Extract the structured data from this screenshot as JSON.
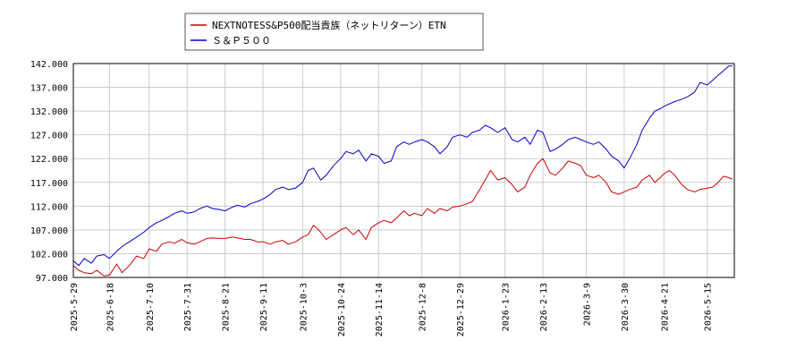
{
  "chart_data": {
    "type": "line",
    "title": "",
    "xlabel": "",
    "ylabel": "",
    "ylim": [
      97.0,
      142.0
    ],
    "y_ticks": [
      "97.000",
      "102.000",
      "107.000",
      "112.000",
      "117.000",
      "122.000",
      "127.000",
      "132.000",
      "137.000",
      "142.000"
    ],
    "x_ticks": [
      "2025-5-29",
      "2025-6-18",
      "2025-7-10",
      "2025-7-31",
      "2025-8-21",
      "2025-9-11",
      "2025-10-3",
      "2025-10-24",
      "2025-11-14",
      "2025-12-8",
      "2025-12-29",
      "2026-1-23",
      "2026-2-13",
      "2026-3-9",
      "2026-3-30",
      "2026-4-21",
      "2026-5-15"
    ],
    "xlim": [
      "2025-5-29",
      "2026-5-30"
    ],
    "grid": true,
    "legend": "top-center",
    "series": [
      {
        "name": "NEXTNOTESS&P500配当貴族（ネットリターン）ETN",
        "color": "#cc0000",
        "points": [
          [
            "2025-5-29",
            99.5
          ],
          [
            "2025-6-1",
            98.5
          ],
          [
            "2025-6-4",
            98.0
          ],
          [
            "2025-6-8",
            97.8
          ],
          [
            "2025-6-11",
            98.5
          ],
          [
            "2025-6-15",
            97.3
          ],
          [
            "2025-6-18",
            97.5
          ],
          [
            "2025-6-22",
            99.8
          ],
          [
            "2025-6-25",
            98.0
          ],
          [
            "2025-6-29",
            99.5
          ],
          [
            "2025-7-3",
            101.5
          ],
          [
            "2025-7-7",
            101.0
          ],
          [
            "2025-7-10",
            103.0
          ],
          [
            "2025-7-14",
            102.5
          ],
          [
            "2025-7-17",
            104.0
          ],
          [
            "2025-7-21",
            104.5
          ],
          [
            "2025-7-24",
            104.2
          ],
          [
            "2025-7-28",
            105.0
          ],
          [
            "2025-7-31",
            104.3
          ],
          [
            "2025-8-4",
            104.0
          ],
          [
            "2025-8-7",
            104.5
          ],
          [
            "2025-8-11",
            105.2
          ],
          [
            "2025-8-14",
            105.3
          ],
          [
            "2025-8-18",
            105.2
          ],
          [
            "2025-8-21",
            105.2
          ],
          [
            "2025-8-25",
            105.5
          ],
          [
            "2025-8-28",
            105.3
          ],
          [
            "2025-9-1",
            105.0
          ],
          [
            "2025-9-4",
            105.0
          ],
          [
            "2025-9-8",
            104.5
          ],
          [
            "2025-9-11",
            104.5
          ],
          [
            "2025-9-15",
            104.0
          ],
          [
            "2025-9-18",
            104.5
          ],
          [
            "2025-9-22",
            104.8
          ],
          [
            "2025-9-25",
            104.0
          ],
          [
            "2025-9-29",
            104.5
          ],
          [
            "2025-10-3",
            105.5
          ],
          [
            "2025-10-6",
            106.0
          ],
          [
            "2025-10-9",
            108.0
          ],
          [
            "2025-10-13",
            106.5
          ],
          [
            "2025-10-16",
            105.0
          ],
          [
            "2025-10-20",
            106.0
          ],
          [
            "2025-10-24",
            107.0
          ],
          [
            "2025-10-27",
            107.5
          ],
          [
            "2025-10-31",
            106.0
          ],
          [
            "2025-11-3",
            107.0
          ],
          [
            "2025-11-7",
            105.0
          ],
          [
            "2025-11-10",
            107.5
          ],
          [
            "2025-11-14",
            108.5
          ],
          [
            "2025-11-17",
            109.0
          ],
          [
            "2025-11-21",
            108.5
          ],
          [
            "2025-11-24",
            109.5
          ],
          [
            "2025-11-28",
            111.0
          ],
          [
            "2025-12-1",
            110.0
          ],
          [
            "2025-12-4",
            110.5
          ],
          [
            "2025-12-8",
            110.0
          ],
          [
            "2025-12-11",
            111.5
          ],
          [
            "2025-12-15",
            110.5
          ],
          [
            "2025-12-18",
            111.5
          ],
          [
            "2025-12-22",
            111.0
          ],
          [
            "2025-12-25",
            111.8
          ],
          [
            "2025-12-29",
            112.0
          ],
          [
            "2026-1-2",
            112.5
          ],
          [
            "2026-1-5",
            113.0
          ],
          [
            "2026-1-9",
            115.5
          ],
          [
            "2026-1-12",
            117.5
          ],
          [
            "2026-1-15",
            119.5
          ],
          [
            "2026-1-19",
            117.5
          ],
          [
            "2026-1-23",
            118.0
          ],
          [
            "2026-1-27",
            116.5
          ],
          [
            "2026-1-30",
            115.0
          ],
          [
            "2026-2-3",
            116.0
          ],
          [
            "2026-2-6",
            118.5
          ],
          [
            "2026-2-10",
            121.0
          ],
          [
            "2026-2-13",
            122.0
          ],
          [
            "2026-2-17",
            119.0
          ],
          [
            "2026-2-20",
            118.5
          ],
          [
            "2026-2-24",
            120.0
          ],
          [
            "2026-2-27",
            121.5
          ],
          [
            "2026-3-3",
            121.0
          ],
          [
            "2026-3-6",
            120.5
          ],
          [
            "2026-3-9",
            118.5
          ],
          [
            "2026-3-13",
            118.0
          ],
          [
            "2026-3-16",
            118.5
          ],
          [
            "2026-3-20",
            117.0
          ],
          [
            "2026-3-23",
            115.0
          ],
          [
            "2026-3-27",
            114.5
          ],
          [
            "2026-3-30",
            115.0
          ],
          [
            "2026-4-2",
            115.5
          ],
          [
            "2026-4-6",
            116.0
          ],
          [
            "2026-4-9",
            117.5
          ],
          [
            "2026-4-13",
            118.5
          ],
          [
            "2026-4-16",
            117.0
          ],
          [
            "2026-4-19",
            118.0
          ],
          [
            "2026-4-21",
            118.8
          ],
          [
            "2026-4-24",
            119.5
          ],
          [
            "2026-4-27",
            118.5
          ],
          [
            "2026-5-1",
            116.5
          ],
          [
            "2026-5-4",
            115.5
          ],
          [
            "2026-5-8",
            115.0
          ],
          [
            "2026-5-11",
            115.5
          ],
          [
            "2026-5-15",
            115.8
          ],
          [
            "2026-5-18",
            116.0
          ],
          [
            "2026-5-21",
            117.0
          ],
          [
            "2026-5-24",
            118.3
          ],
          [
            "2026-5-27",
            118.0
          ],
          [
            "2026-5-29",
            117.7
          ]
        ]
      },
      {
        "name": "Ｓ＆Ｐ５００",
        "color": "#0000cc",
        "points": [
          [
            "2025-5-29",
            100.5
          ],
          [
            "2025-6-1",
            99.5
          ],
          [
            "2025-6-4",
            101.0
          ],
          [
            "2025-6-8",
            100.0
          ],
          [
            "2025-6-11",
            101.5
          ],
          [
            "2025-6-15",
            101.8
          ],
          [
            "2025-6-18",
            101.0
          ],
          [
            "2025-6-22",
            102.5
          ],
          [
            "2025-6-25",
            103.5
          ],
          [
            "2025-6-29",
            104.5
          ],
          [
            "2025-7-3",
            105.5
          ],
          [
            "2025-7-7",
            106.5
          ],
          [
            "2025-7-10",
            107.5
          ],
          [
            "2025-7-14",
            108.5
          ],
          [
            "2025-7-17",
            109.0
          ],
          [
            "2025-7-21",
            109.8
          ],
          [
            "2025-7-24",
            110.5
          ],
          [
            "2025-7-28",
            111.0
          ],
          [
            "2025-7-31",
            110.5
          ],
          [
            "2025-8-4",
            110.8
          ],
          [
            "2025-8-7",
            111.5
          ],
          [
            "2025-8-11",
            112.0
          ],
          [
            "2025-8-14",
            111.5
          ],
          [
            "2025-8-18",
            111.3
          ],
          [
            "2025-8-21",
            111.0
          ],
          [
            "2025-8-25",
            111.8
          ],
          [
            "2025-8-28",
            112.2
          ],
          [
            "2025-9-1",
            111.8
          ],
          [
            "2025-9-4",
            112.5
          ],
          [
            "2025-9-8",
            113.0
          ],
          [
            "2025-9-11",
            113.5
          ],
          [
            "2025-9-15",
            114.5
          ],
          [
            "2025-9-18",
            115.5
          ],
          [
            "2025-9-22",
            116.0
          ],
          [
            "2025-9-25",
            115.5
          ],
          [
            "2025-9-29",
            115.8
          ],
          [
            "2025-10-3",
            117.0
          ],
          [
            "2025-10-6",
            119.5
          ],
          [
            "2025-10-9",
            120.0
          ],
          [
            "2025-10-13",
            117.5
          ],
          [
            "2025-10-16",
            118.5
          ],
          [
            "2025-10-20",
            120.5
          ],
          [
            "2025-10-24",
            122.0
          ],
          [
            "2025-10-27",
            123.5
          ],
          [
            "2025-10-31",
            123.0
          ],
          [
            "2025-11-3",
            123.8
          ],
          [
            "2025-11-7",
            121.5
          ],
          [
            "2025-11-10",
            123.0
          ],
          [
            "2025-11-14",
            122.5
          ],
          [
            "2025-11-17",
            121.0
          ],
          [
            "2025-11-21",
            121.5
          ],
          [
            "2025-11-24",
            124.5
          ],
          [
            "2025-11-28",
            125.5
          ],
          [
            "2025-12-1",
            125.0
          ],
          [
            "2025-12-4",
            125.5
          ],
          [
            "2025-12-8",
            126.0
          ],
          [
            "2025-12-11",
            125.5
          ],
          [
            "2025-12-15",
            124.5
          ],
          [
            "2025-12-18",
            123.0
          ],
          [
            "2025-12-22",
            124.5
          ],
          [
            "2025-12-25",
            126.5
          ],
          [
            "2025-12-29",
            127.0
          ],
          [
            "2026-1-2",
            126.5
          ],
          [
            "2026-1-5",
            127.5
          ],
          [
            "2026-1-9",
            128.0
          ],
          [
            "2026-1-12",
            129.0
          ],
          [
            "2026-1-15",
            128.5
          ],
          [
            "2026-1-19",
            127.5
          ],
          [
            "2026-1-23",
            128.5
          ],
          [
            "2026-1-27",
            126.0
          ],
          [
            "2026-1-30",
            125.5
          ],
          [
            "2026-2-3",
            126.5
          ],
          [
            "2026-2-6",
            125.0
          ],
          [
            "2026-2-10",
            128.0
          ],
          [
            "2026-2-13",
            127.5
          ],
          [
            "2026-2-17",
            123.5
          ],
          [
            "2026-2-20",
            124.0
          ],
          [
            "2026-2-24",
            125.0
          ],
          [
            "2026-2-27",
            126.0
          ],
          [
            "2026-3-3",
            126.5
          ],
          [
            "2026-3-6",
            126.0
          ],
          [
            "2026-3-9",
            125.5
          ],
          [
            "2026-3-13",
            125.0
          ],
          [
            "2026-3-16",
            125.5
          ],
          [
            "2026-3-20",
            124.0
          ],
          [
            "2026-3-23",
            122.5
          ],
          [
            "2026-3-27",
            121.5
          ],
          [
            "2026-3-30",
            120.0
          ],
          [
            "2026-4-2",
            122.0
          ],
          [
            "2026-4-6",
            125.0
          ],
          [
            "2026-4-9",
            128.0
          ],
          [
            "2026-4-13",
            130.5
          ],
          [
            "2026-4-16",
            132.0
          ],
          [
            "2026-4-19",
            132.5
          ],
          [
            "2026-4-21",
            133.0
          ],
          [
            "2026-4-24",
            133.5
          ],
          [
            "2026-4-27",
            134.0
          ],
          [
            "2026-5-1",
            134.5
          ],
          [
            "2026-5-4",
            135.0
          ],
          [
            "2026-5-8",
            136.0
          ],
          [
            "2026-5-11",
            138.0
          ],
          [
            "2026-5-15",
            137.5
          ],
          [
            "2026-5-18",
            138.5
          ],
          [
            "2026-5-21",
            139.5
          ],
          [
            "2026-5-24",
            140.5
          ],
          [
            "2026-5-27",
            141.5
          ],
          [
            "2026-5-29",
            141.5
          ]
        ]
      }
    ]
  }
}
